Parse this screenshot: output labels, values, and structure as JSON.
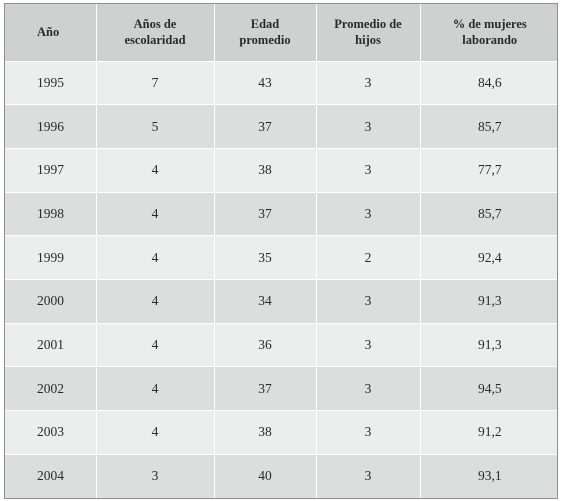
{
  "table": {
    "headers": [
      "Año",
      "Años de escolaridad",
      "Edad promedio",
      "Promedio de hijos",
      "% de mujeres laborando"
    ],
    "header_lines": [
      [
        "Año"
      ],
      [
        "Años de",
        "escolaridad"
      ],
      [
        "Edad",
        "promedio"
      ],
      [
        "Promedio de",
        "hijos"
      ],
      [
        "% de mujeres",
        "laborando"
      ]
    ],
    "rows": [
      [
        "1995",
        "7",
        "43",
        "3",
        "84,6"
      ],
      [
        "1996",
        "5",
        "37",
        "3",
        "85,7"
      ],
      [
        "1997",
        "4",
        "38",
        "3",
        "77,7"
      ],
      [
        "1998",
        "4",
        "37",
        "3",
        "85,7"
      ],
      [
        "1999",
        "4",
        "35",
        "2",
        "92,4"
      ],
      [
        "2000",
        "4",
        "34",
        "3",
        "91,3"
      ],
      [
        "2001",
        "4",
        "36",
        "3",
        "91,3"
      ],
      [
        "2002",
        "4",
        "37",
        "3",
        "94,5"
      ],
      [
        "2003",
        "4",
        "38",
        "3",
        "91,2"
      ],
      [
        "2004",
        "3",
        "40",
        "3",
        "93,1"
      ]
    ]
  },
  "colors": {
    "header_bg": "#cfd0d0",
    "row_light": "#eceded",
    "row_dark": "#dcdddd",
    "border": "#8f8f8f"
  }
}
